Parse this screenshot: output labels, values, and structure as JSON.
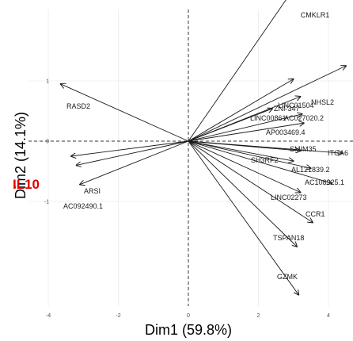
{
  "chart_data": {
    "type": "scatter",
    "subtype": "pca-biplot-loadings",
    "xlabel": "Dim1 (59.8%)",
    "ylabel": "Dim2 (14.1%)",
    "xlim": [
      -4.4,
      4.4
    ],
    "ylim": [
      -3.9,
      3.2
    ],
    "xticks": [
      "-4",
      "-2",
      "0",
      "2",
      "4"
    ],
    "yticks": [
      "-1",
      "0",
      "1"
    ],
    "xtick_values": [
      -4,
      -2,
      0,
      2,
      4
    ],
    "ytick_values": [
      -1,
      0,
      1
    ],
    "grid": true,
    "reference_lines": {
      "x": 0,
      "y": 0,
      "style": "dashed"
    },
    "colors": {
      "arrow": "#1a1a1a",
      "grid": "#ebebeb",
      "highlight": "#e00000",
      "reference": "#333333"
    },
    "highlight_label": "IL10",
    "vectors": [
      {
        "label": "CMKLR1",
        "x": 3.65,
        "y": 3.07
      },
      {
        "label": "NHSL2",
        "x": 4.5,
        "y": 1.25
      },
      {
        "label": "ZNF347",
        "x": 3.0,
        "y": 1.03
      },
      {
        "label": "LINC01504",
        "x": 3.2,
        "y": 0.74
      },
      {
        "label": "LINC00861",
        "x": 2.4,
        "y": 0.54
      },
      {
        "label": "AC027020.2",
        "x": 3.25,
        "y": 0.45
      },
      {
        "label": "AP003469.4",
        "x": 3.3,
        "y": 0.3
      },
      {
        "label": "SMIM35",
        "x": 3.2,
        "y": -0.16
      },
      {
        "label": "ITGA6",
        "x": 4.4,
        "y": -0.2
      },
      {
        "label": "SH3RF2",
        "x": 3.0,
        "y": -0.33
      },
      {
        "label": "AL121839.2",
        "x": 3.5,
        "y": -0.45
      },
      {
        "label": "AC108925.1",
        "x": 4.1,
        "y": -0.7
      },
      {
        "label": "LINC02273",
        "x": 3.2,
        "y": -0.85
      },
      {
        "label": "CCR1",
        "x": 3.55,
        "y": -1.35
      },
      {
        "label": "TSPAN18",
        "x": 3.1,
        "y": -1.75
      },
      {
        "label": "GZMK",
        "x": 3.15,
        "y": -2.55
      },
      {
        "label": "RASD2",
        "x": -3.65,
        "y": 0.95
      },
      {
        "label": "ARSI",
        "x": -3.2,
        "y": -0.4
      },
      {
        "label": "AC092490.1",
        "x": -3.1,
        "y": -0.72
      },
      {
        "label": "IL10",
        "x": -3.35,
        "y": -0.25
      }
    ]
  }
}
